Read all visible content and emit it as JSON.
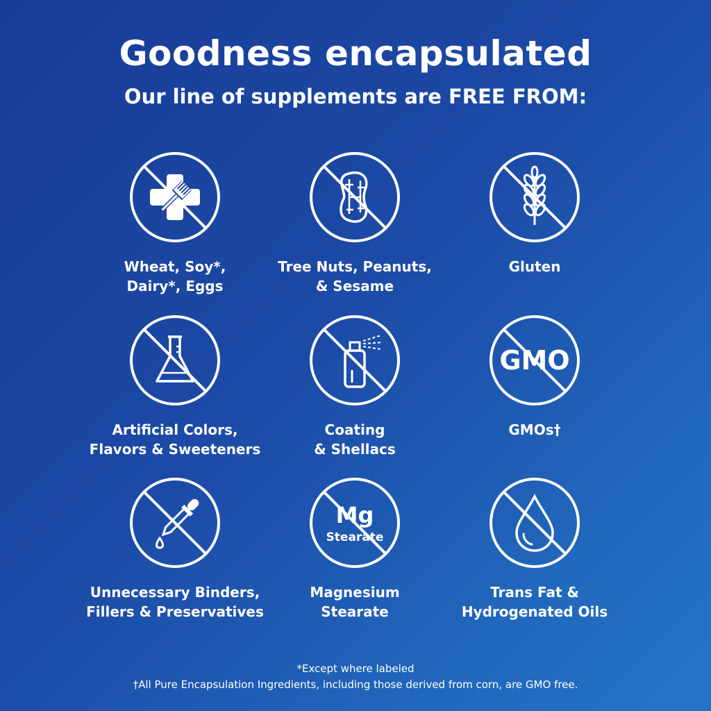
{
  "header": {
    "title": "Goodness encapsulated",
    "subtitle": "Our line of supplements are FREE FROM:"
  },
  "items": [
    {
      "icon": "allergen-cross-fork-icon",
      "label": "Wheat, Soy*,\nDairy*, Eggs"
    },
    {
      "icon": "peanut-icon",
      "label": "Tree Nuts, Peanuts,\n& Sesame"
    },
    {
      "icon": "wheat-icon",
      "label": "Gluten"
    },
    {
      "icon": "flask-icon",
      "label": "Artificial Colors,\nFlavors & Sweeteners"
    },
    {
      "icon": "spray-can-icon",
      "label": "Coating\n& Shellacs"
    },
    {
      "icon": "gmo-text-icon",
      "label": "GMOs†",
      "icon_text": "GMO"
    },
    {
      "icon": "dropper-icon",
      "label": "Unnecessary Binders,\nFillers & Preservatives"
    },
    {
      "icon": "mg-stearate-text-icon",
      "label": "Magnesium\nStearate",
      "icon_text": "Mg",
      "icon_subtext": "Stearate"
    },
    {
      "icon": "oil-drop-icon",
      "label": "Trans Fat &\nHydrogenated Oils"
    }
  ],
  "footnotes": [
    "*Except where labeled",
    "†All Pure Encapsulation Ingredients, including those derived from corn, are GMO free."
  ],
  "colors": {
    "background_start": "#173c97",
    "background_end": "#2674c8",
    "foreground": "#ffffff"
  }
}
